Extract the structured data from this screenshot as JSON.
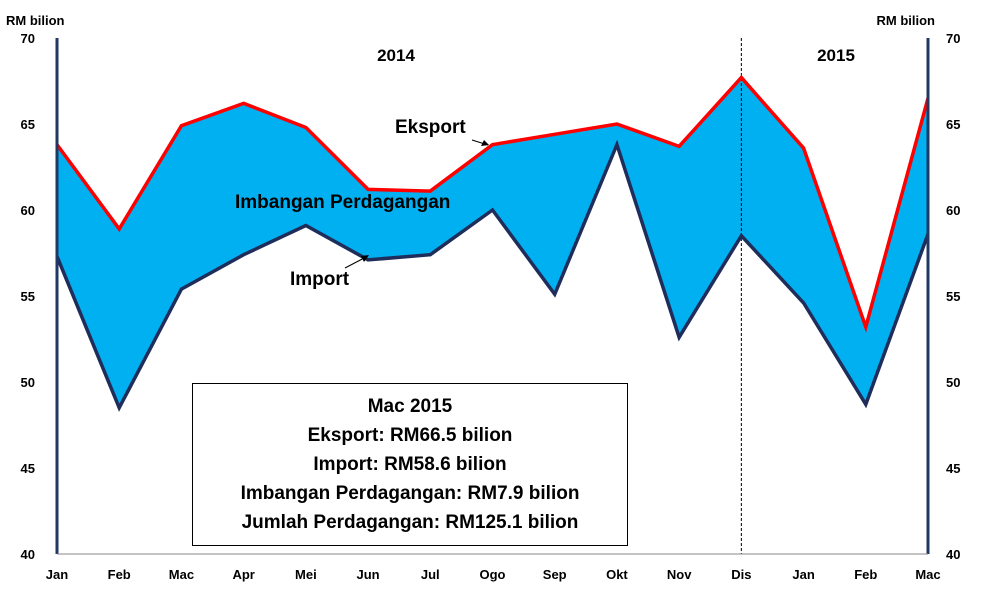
{
  "chart_data": {
    "type": "area",
    "categories": [
      "Jan",
      "Feb",
      "Mac",
      "Apr",
      "Mei",
      "Jun",
      "Jul",
      "Ogo",
      "Sep",
      "Okt",
      "Nov",
      "Dis",
      "Jan",
      "Feb",
      "Mac"
    ],
    "series": [
      {
        "name": "Eksport",
        "values": [
          63.8,
          58.9,
          64.9,
          66.2,
          64.8,
          61.2,
          61.1,
          63.8,
          64.4,
          65.0,
          63.7,
          67.7,
          63.6,
          53.2,
          66.5
        ]
      },
      {
        "name": "Import",
        "values": [
          57.3,
          48.5,
          55.4,
          57.4,
          59.1,
          57.1,
          57.4,
          60.0,
          55.1,
          63.8,
          52.6,
          58.5,
          54.6,
          48.7,
          58.6
        ]
      }
    ],
    "area_label": "Imbangan Perdagangan",
    "ylim": [
      40,
      70
    ],
    "yticks": [
      40,
      45,
      50,
      55,
      60,
      65,
      70
    ],
    "ylabel_left": "RM bilion",
    "ylabel_right": "RM bilion",
    "year_labels": [
      "2014",
      "2015"
    ],
    "year_divider_after": "Dis",
    "colors": {
      "fill": "#00B0F0",
      "eksport": "#FF0000",
      "import": "#1F2D5A",
      "axis": "#1F3864"
    },
    "grid": false
  },
  "info_box": {
    "title": "Mac 2015",
    "lines": [
      "Eksport: RM66.5 bilion",
      "Import: RM58.6 bilion",
      "Imbangan Perdagangan: RM7.9 bilion",
      "Jumlah Perdagangan: RM125.1 bilion"
    ]
  }
}
